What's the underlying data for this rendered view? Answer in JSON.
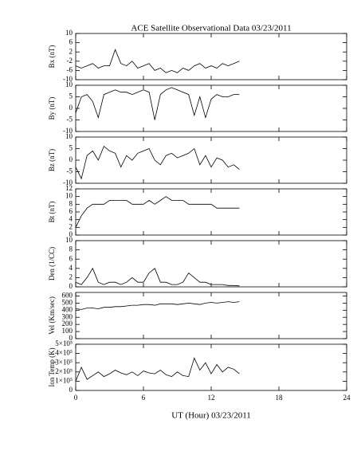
{
  "chart_data": [
    {
      "type": "line",
      "title": "ACE Satellite Observational Data   03/23/2011",
      "y_label": "Bx (nT)",
      "x": [
        0,
        0.5,
        1,
        1.5,
        2,
        2.5,
        3,
        3.5,
        4,
        4.5,
        5,
        5.5,
        6,
        6.5,
        7,
        7.5,
        8,
        8.5,
        9,
        9.5,
        10,
        10.5,
        11,
        11.5,
        12,
        12.5,
        13,
        13.5,
        14,
        14.5
      ],
      "values": [
        -4,
        -5,
        -4,
        -3,
        -5,
        -4,
        -4,
        3,
        -3,
        -4,
        -2,
        -5,
        -4,
        -3,
        -6,
        -5,
        -7,
        -6,
        -7,
        -5,
        -6,
        -4,
        -3,
        -5,
        -4,
        -5,
        -3,
        -4,
        -3,
        -2
      ],
      "xlim": [
        0,
        24
      ],
      "xticks": [
        0,
        6,
        12,
        18,
        24
      ],
      "ylim": [
        -10,
        10
      ],
      "yticks": [
        -10,
        -6,
        -2,
        2,
        6,
        10
      ]
    },
    {
      "type": "line",
      "y_label": "By (nT)",
      "x": [
        0,
        0.5,
        1,
        1.5,
        2,
        2.5,
        3,
        3.5,
        4,
        4.5,
        5,
        5.5,
        6,
        6.5,
        7,
        7.5,
        8,
        8.5,
        9,
        9.5,
        10,
        10.5,
        11,
        11.5,
        12,
        12.5,
        13,
        13.5,
        14,
        14.5
      ],
      "values": [
        -2,
        5,
        6,
        3,
        -4,
        6,
        7,
        8,
        7,
        7,
        6,
        7,
        8,
        7,
        -5,
        6,
        8,
        9,
        8,
        7,
        6,
        -3,
        5,
        -4,
        4,
        6,
        5,
        5,
        6,
        6
      ],
      "xlim": [
        0,
        24
      ],
      "xticks": [
        0,
        6,
        12,
        18,
        24
      ],
      "ylim": [
        -10,
        10
      ],
      "yticks": [
        -10,
        -5,
        0,
        5,
        10
      ]
    },
    {
      "type": "line",
      "y_label": "Bz (nT)",
      "x": [
        0,
        0.5,
        1,
        1.5,
        2,
        2.5,
        3,
        3.5,
        4,
        4.5,
        5,
        5.5,
        6,
        6.5,
        7,
        7.5,
        8,
        8.5,
        9,
        9.5,
        10,
        10.5,
        11,
        11.5,
        12,
        12.5,
        13,
        13.5,
        14,
        14.5
      ],
      "values": [
        -3,
        -8,
        2,
        4,
        0,
        6,
        4,
        3,
        -3,
        2,
        0,
        3,
        4,
        5,
        0,
        -2,
        2,
        3,
        1,
        2,
        3,
        5,
        -2,
        2,
        -3,
        1,
        0,
        -3,
        -2,
        -4
      ],
      "xlim": [
        0,
        24
      ],
      "xticks": [
        0,
        6,
        12,
        18,
        24
      ],
      "ylim": [
        -10,
        10
      ],
      "yticks": [
        -10,
        -5,
        0,
        5,
        10
      ]
    },
    {
      "type": "line",
      "y_label": "Bt (nT)",
      "x": [
        0,
        0.5,
        1,
        1.5,
        2,
        2.5,
        3,
        3.5,
        4,
        4.5,
        5,
        5.5,
        6,
        6.5,
        7,
        7.5,
        8,
        8.5,
        9,
        9.5,
        10,
        10.5,
        11,
        11.5,
        12,
        12.5,
        13,
        13.5,
        14,
        14.5
      ],
      "values": [
        2,
        5,
        7,
        8,
        8,
        8,
        9,
        9,
        9,
        9,
        8,
        8,
        8,
        9,
        8,
        9,
        10,
        9,
        9,
        9,
        8,
        8,
        8,
        8,
        8,
        7,
        7,
        7,
        7,
        7
      ],
      "xlim": [
        0,
        24
      ],
      "xticks": [
        0,
        6,
        12,
        18,
        24
      ],
      "ylim": [
        0,
        12
      ],
      "yticks": [
        0,
        2,
        4,
        6,
        8,
        10,
        12
      ]
    },
    {
      "type": "line",
      "y_label": "Den (1/CC)",
      "x": [
        0,
        0.5,
        1,
        1.5,
        2,
        2.5,
        3,
        3.5,
        4,
        4.5,
        5,
        5.5,
        6,
        6.5,
        7,
        7.5,
        8,
        8.5,
        9,
        9.5,
        10,
        10.5,
        11,
        11.5,
        12,
        12.5,
        13,
        13.5,
        14,
        14.5
      ],
      "values": [
        1,
        0.5,
        2,
        4,
        1,
        0.5,
        1,
        1,
        0.5,
        1,
        2,
        1,
        1,
        3,
        4,
        1,
        1,
        0.5,
        0.5,
        1,
        3,
        2,
        1,
        1,
        0.5,
        0.5,
        0.5,
        0.3,
        0.3,
        0.2
      ],
      "xlim": [
        0,
        24
      ],
      "xticks": [
        0,
        6,
        12,
        18,
        24
      ],
      "ylim": [
        0,
        10
      ],
      "yticks": [
        0,
        2,
        4,
        6,
        8,
        10
      ]
    },
    {
      "type": "line",
      "y_label": "Vel (Km/sec)",
      "x": [
        0,
        0.5,
        1,
        1.5,
        2,
        2.5,
        3,
        3.5,
        4,
        4.5,
        5,
        5.5,
        6,
        6.5,
        7,
        7.5,
        8,
        8.5,
        9,
        9.5,
        10,
        10.5,
        11,
        11.5,
        12,
        12.5,
        13,
        13.5,
        14,
        14.5
      ],
      "values": [
        420,
        410,
        430,
        430,
        420,
        440,
        440,
        450,
        450,
        460,
        470,
        470,
        480,
        480,
        470,
        490,
        490,
        490,
        480,
        490,
        500,
        490,
        480,
        500,
        510,
        500,
        510,
        520,
        510,
        520
      ],
      "xlim": [
        0,
        24
      ],
      "xticks": [
        0,
        6,
        12,
        18,
        24
      ],
      "ylim": [
        0,
        650
      ],
      "yticks": [
        0,
        100,
        200,
        300,
        400,
        500,
        600
      ]
    },
    {
      "type": "line",
      "y_label": "Ion Temp (K)",
      "x_label": "UT (Hour)  03/23/2011",
      "x": [
        0,
        0.5,
        1,
        1.5,
        2,
        2.5,
        3,
        3.5,
        4,
        4.5,
        5,
        5.5,
        6,
        6.5,
        7,
        7.5,
        8,
        8.5,
        9,
        9.5,
        10,
        10.5,
        11,
        11.5,
        12,
        12.5,
        13,
        13.5,
        14,
        14.5
      ],
      "values": [
        100000,
        250000,
        120000,
        160000,
        200000,
        150000,
        180000,
        220000,
        190000,
        170000,
        200000,
        160000,
        210000,
        190000,
        180000,
        220000,
        170000,
        150000,
        200000,
        160000,
        150000,
        350000,
        220000,
        300000,
        180000,
        280000,
        200000,
        250000,
        230000,
        180000
      ],
      "xlim": [
        0,
        24
      ],
      "xticks": [
        0,
        6,
        12,
        18,
        24
      ],
      "ylim": [
        0,
        500000
      ],
      "yticks": [
        0,
        {
          "value": 100000,
          "label": "1×10⁵"
        },
        {
          "value": 200000,
          "label": "2×10⁵"
        },
        {
          "value": 300000,
          "label": "3×10⁵"
        },
        {
          "value": 400000,
          "label": "4×10⁵"
        },
        {
          "value": 500000,
          "label": "5×10⁵"
        }
      ]
    }
  ]
}
